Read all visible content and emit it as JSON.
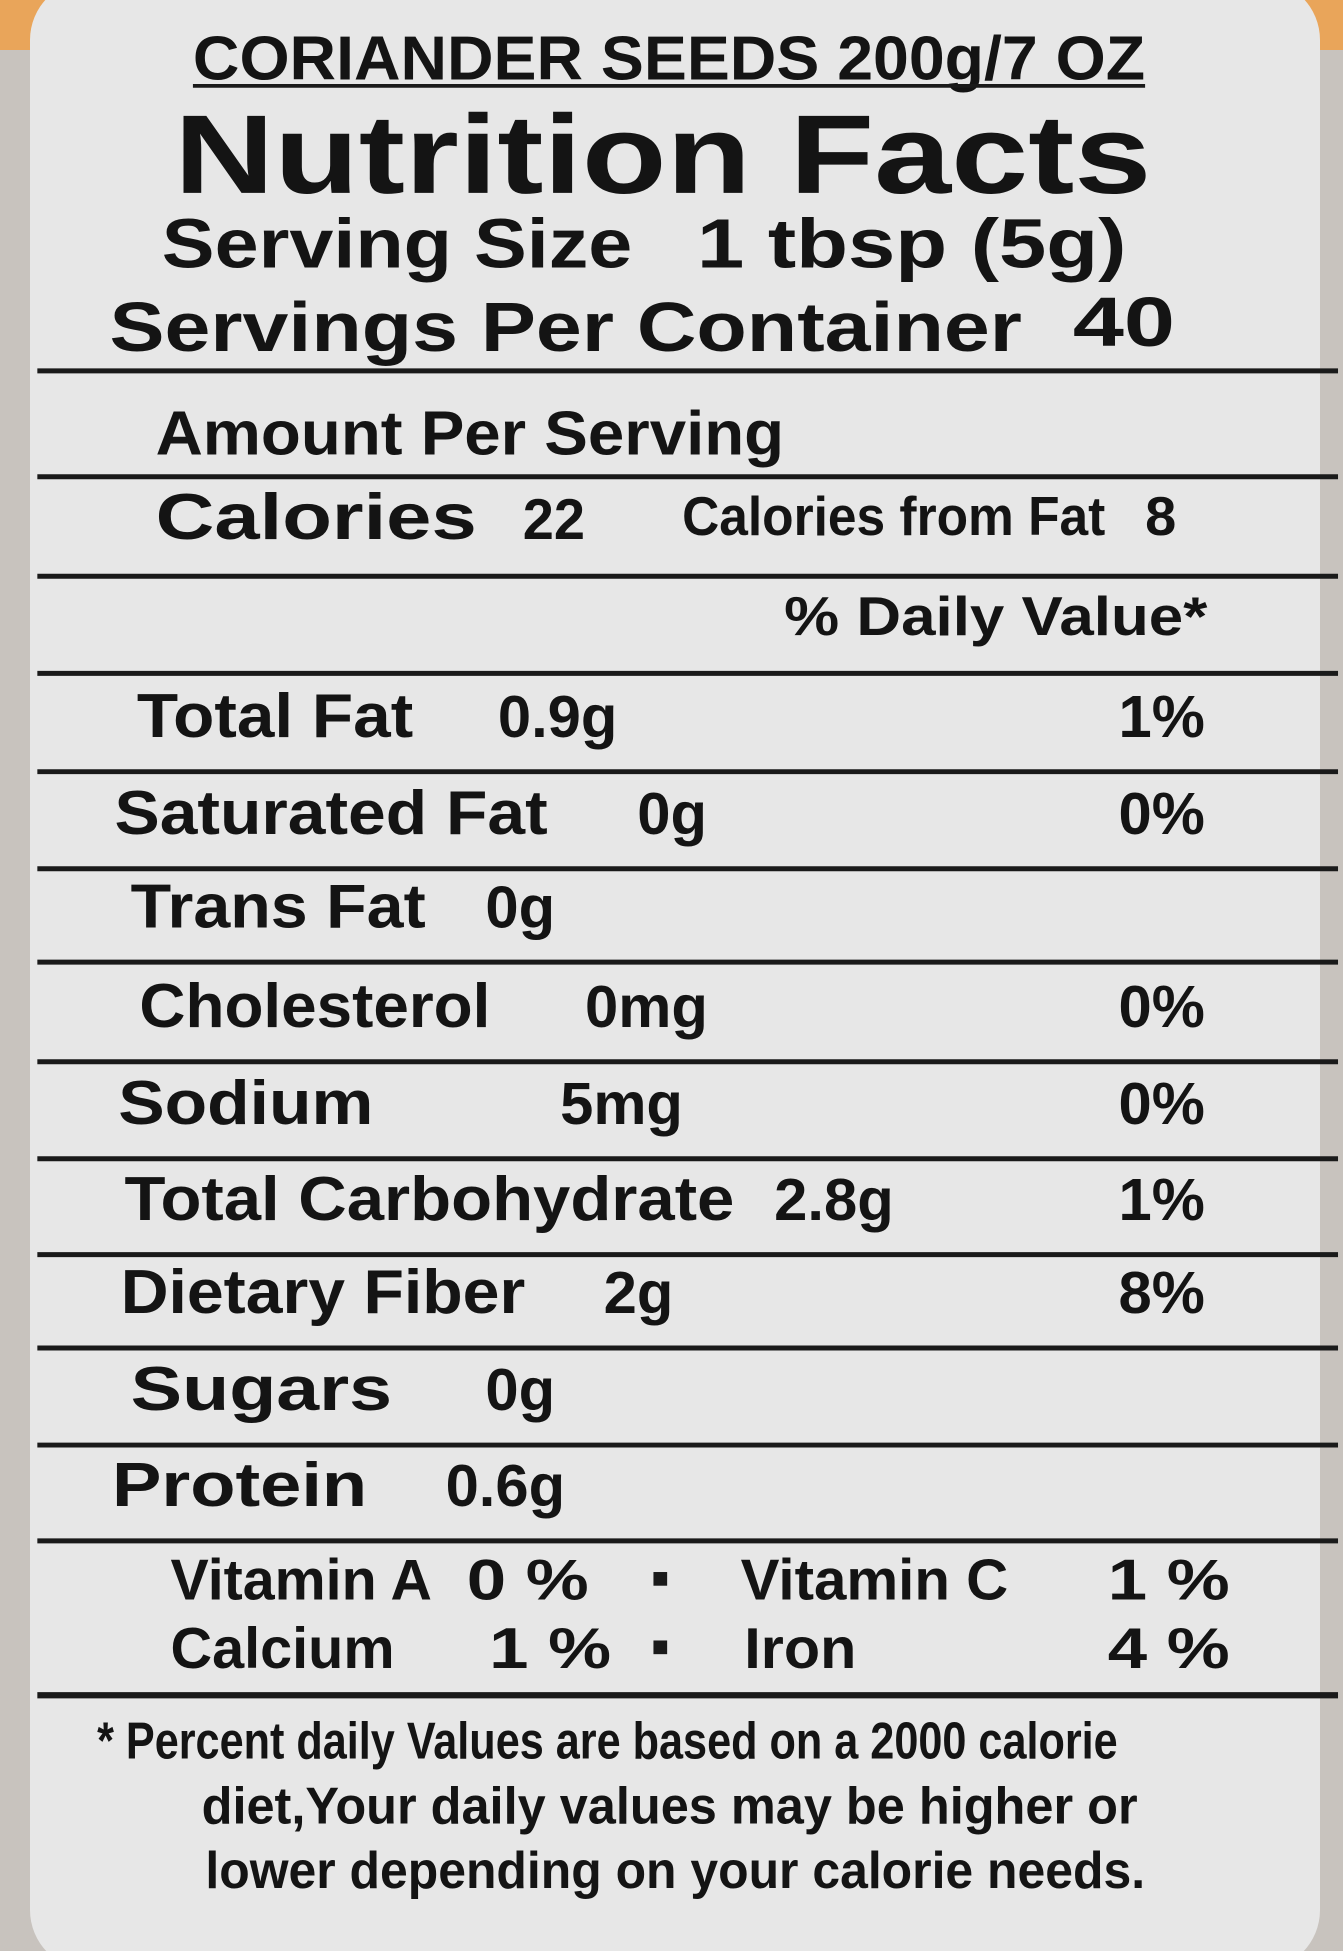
{
  "header": {
    "product": "CORIANDER SEEDS 200g/7 OZ",
    "title": "Nutrition Facts",
    "serving_size": {
      "label": "Serving Size",
      "value": "1 tbsp (5g)"
    },
    "servings_per_container": {
      "label": "Servings Per Container",
      "value": "40"
    }
  },
  "amount_per_serving": "Amount Per Serving",
  "calories": {
    "label": "Calories",
    "value": "22"
  },
  "calories_from_fat": {
    "label": "Calories from Fat",
    "value": "8"
  },
  "daily_value_header": "% Daily Value*",
  "nutrients": [
    {
      "name": "Total Fat",
      "amount": "0.9g",
      "dv": "1%"
    },
    {
      "name": "Saturated Fat",
      "amount": "0g",
      "dv": "0%"
    },
    {
      "name": "Trans Fat",
      "amount": "0g"
    },
    {
      "name": "Cholesterol",
      "amount": "0mg",
      "dv": "0%"
    },
    {
      "name": "Sodium",
      "amount": "5mg",
      "dv": "0%"
    },
    {
      "name": "Total Carbohydrate",
      "amount": "2.8g",
      "dv": "1%"
    },
    {
      "name": "Dietary Fiber",
      "amount": "2g",
      "dv": "8%"
    },
    {
      "name": "Sugars",
      "amount": "0g"
    },
    {
      "name": "Protein",
      "amount": "0.6g"
    }
  ],
  "vitamins": [
    {
      "name": "Vitamin A",
      "value": "0 %"
    },
    {
      "name": "Vitamin C",
      "value": "1 %"
    },
    {
      "name": "Calcium",
      "value": "1 %"
    },
    {
      "name": "Iron",
      "value": "4 %"
    }
  ],
  "footnote": [
    "* Percent daily Values are based on a 2000 calorie",
    "diet,Your daily values may be higher or",
    "lower depending on your calorie needs."
  ]
}
